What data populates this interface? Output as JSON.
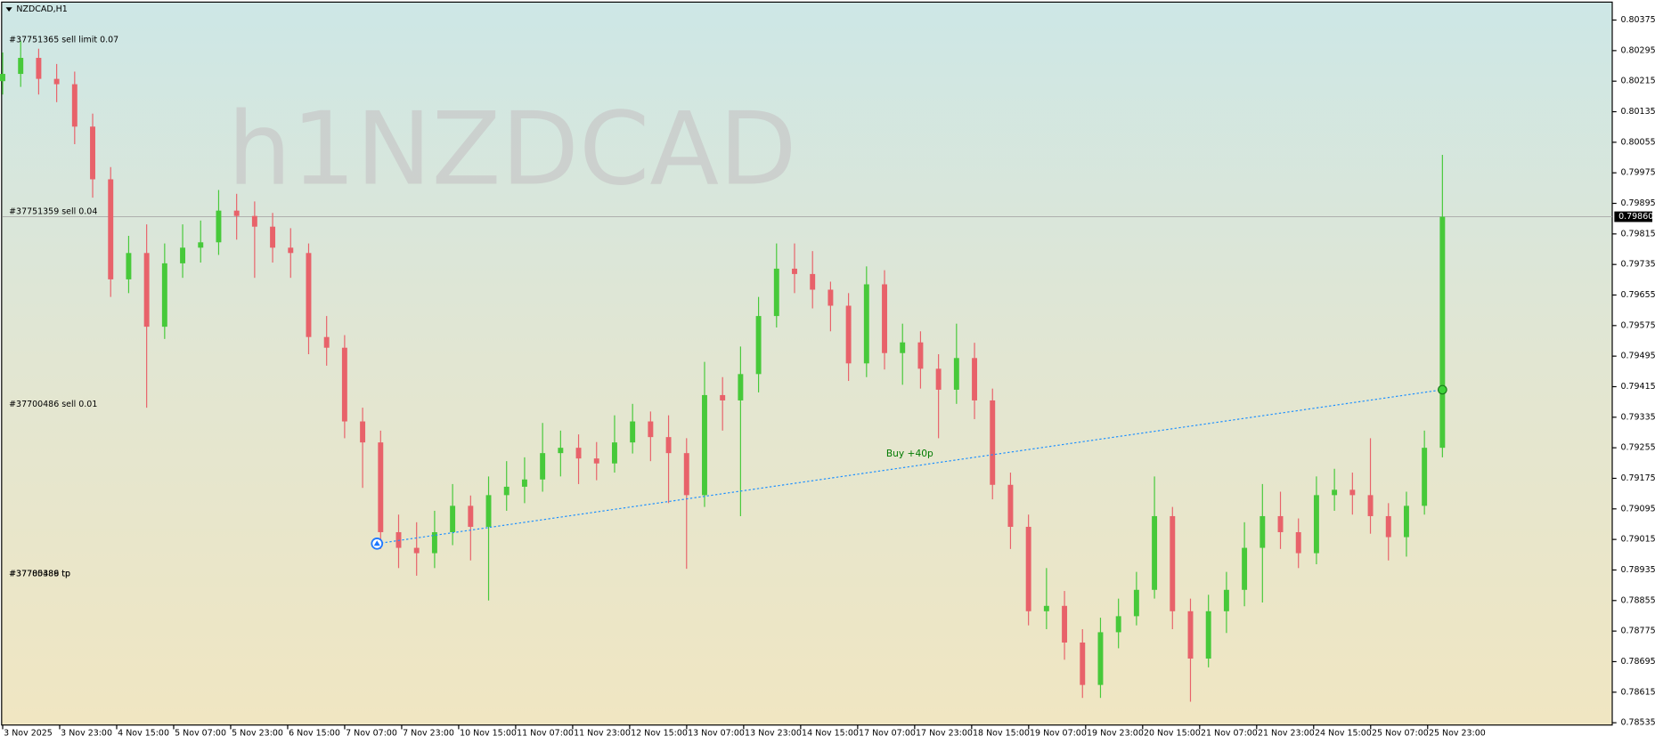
{
  "chart_data": {
    "type": "candlestick",
    "title": "NZDCAD,H1",
    "watermark": "h1NZDCAD",
    "ylim": [
      0.78529,
      0.80422
    ],
    "yticks": [
      0.80375,
      0.80295,
      0.80215,
      0.80135,
      0.80055,
      0.79975,
      0.79895,
      0.79815,
      0.79735,
      0.79655,
      0.79575,
      0.79495,
      0.79415,
      0.79335,
      0.79255,
      0.79175,
      0.79095,
      0.79015,
      0.78935,
      0.78855,
      0.78775,
      0.78695,
      0.78615,
      0.78535
    ],
    "x_labels": [
      "3 Nov 2025",
      "3 Nov 23:00",
      "4 Nov 15:00",
      "5 Nov 07:00",
      "5 Nov 23:00",
      "6 Nov 15:00",
      "7 Nov 07:00",
      "7 Nov 23:00",
      "10 Nov 15:00",
      "11 Nov 07:00",
      "11 Nov 23:00",
      "12 Nov 15:00",
      "13 Nov 07:00",
      "13 Nov 23:00",
      "14 Nov 15:00",
      "17 Nov 07:00",
      "17 Nov 23:00",
      "18 Nov 15:00",
      "19 Nov 07:00",
      "19 Nov 23:00",
      "20 Nov 15:00",
      "21 Nov 07:00",
      "21 Nov 23:00",
      "24 Nov 15:00",
      "25 Nov 07:00",
      "25 Nov 23:00"
    ],
    "up_color": "#47c93a",
    "down_color": "#e8626a",
    "open": [
      0.80215,
      0.80234,
      0.80276,
      0.80221,
      0.80207,
      0.80096,
      0.79958,
      0.79696,
      0.79765,
      0.79572,
      0.79738,
      0.79779,
      0.79793,
      0.79876,
      0.79862,
      0.79834,
      0.79779,
      0.79765,
      0.79545,
      0.79517,
      0.79324,
      0.79269,
      0.79034,
      0.78993,
      0.78979,
      0.79034,
      0.79103,
      0.79048,
      0.79131,
      0.79153,
      0.79172,
      0.79241,
      0.79255,
      0.79227,
      0.79214,
      0.79269,
      0.79324,
      0.79283,
      0.79241,
      0.79131,
      0.79393,
      0.79379,
      0.79448,
      0.796,
      0.79724,
      0.7971,
      0.79669,
      0.79627,
      0.79476,
      0.79683,
      0.79503,
      0.79531,
      0.79462,
      0.79407,
      0.7949,
      0.79379,
      0.79158,
      0.79048,
      0.78827,
      0.78841,
      0.78745,
      0.78634,
      0.78772,
      0.78814,
      0.78883,
      0.79076,
      0.78827,
      0.78703,
      0.78827,
      0.78883,
      0.78993,
      0.79076,
      0.79034,
      0.78979,
      0.79131,
      0.79145,
      0.79131,
      0.79076,
      0.79021,
      0.79103,
      0.79255
    ],
    "high": [
      0.8029,
      0.8032,
      0.803,
      0.8026,
      0.8024,
      0.8013,
      0.7999,
      0.7981,
      0.7984,
      0.7979,
      0.7984,
      0.7985,
      0.7993,
      0.7992,
      0.799,
      0.7987,
      0.7983,
      0.7979,
      0.796,
      0.7955,
      0.7936,
      0.793,
      0.7908,
      0.7906,
      0.7909,
      0.7916,
      0.7913,
      0.7918,
      0.7922,
      0.7923,
      0.7932,
      0.793,
      0.7929,
      0.7927,
      0.7934,
      0.7937,
      0.7935,
      0.7934,
      0.7928,
      0.7948,
      0.7944,
      0.7952,
      0.7965,
      0.7979,
      0.7979,
      0.7977,
      0.7969,
      0.7966,
      0.7973,
      0.7972,
      0.7958,
      0.7956,
      0.795,
      0.7958,
      0.7953,
      0.7941,
      0.7919,
      0.7908,
      0.7894,
      0.7888,
      0.7878,
      0.7881,
      0.7886,
      0.7893,
      0.7918,
      0.791,
      0.7886,
      0.7887,
      0.7893,
      0.7906,
      0.7916,
      0.7914,
      0.7907,
      0.7918,
      0.792,
      0.7919,
      0.7928,
      0.7911,
      0.7914,
      0.793,
      0.80022
    ],
    "low": [
      0.8018,
      0.802,
      0.8018,
      0.8016,
      0.8005,
      0.7991,
      0.7965,
      0.7966,
      0.7936,
      0.7954,
      0.797,
      0.7974,
      0.7976,
      0.798,
      0.797,
      0.7974,
      0.797,
      0.795,
      0.7947,
      0.7928,
      0.7915,
      0.7899,
      0.7894,
      0.7892,
      0.7894,
      0.79,
      0.7896,
      0.78855,
      0.7909,
      0.7911,
      0.7914,
      0.7918,
      0.7916,
      0.7917,
      0.7919,
      0.7924,
      0.7922,
      0.7911,
      0.78938,
      0.791,
      0.793,
      0.79076,
      0.794,
      0.7957,
      0.7966,
      0.7962,
      0.7956,
      0.7943,
      0.7944,
      0.7946,
      0.7942,
      0.7941,
      0.7928,
      0.7937,
      0.7933,
      0.7912,
      0.7899,
      0.7879,
      0.7878,
      0.787,
      0.786,
      0.786,
      0.7873,
      0.7879,
      0.7886,
      0.7878,
      0.7859,
      0.7868,
      0.7877,
      0.7884,
      0.7885,
      0.7899,
      0.7894,
      0.7895,
      0.7909,
      0.7908,
      0.7903,
      0.7896,
      0.7897,
      0.7908,
      0.7923
    ],
    "close": [
      0.80234,
      0.80276,
      0.80221,
      0.80207,
      0.80096,
      0.79958,
      0.79696,
      0.79765,
      0.79572,
      0.79738,
      0.79779,
      0.79793,
      0.79876,
      0.79862,
      0.79834,
      0.79779,
      0.79765,
      0.79545,
      0.79517,
      0.79324,
      0.79269,
      0.79034,
      0.78993,
      0.78979,
      0.79034,
      0.79103,
      0.79048,
      0.79131,
      0.79153,
      0.79172,
      0.79241,
      0.79255,
      0.79227,
      0.79214,
      0.79269,
      0.79324,
      0.79283,
      0.79241,
      0.79131,
      0.79393,
      0.79379,
      0.79448,
      0.796,
      0.79724,
      0.7971,
      0.79669,
      0.79627,
      0.79476,
      0.79683,
      0.79503,
      0.79531,
      0.79462,
      0.79407,
      0.7949,
      0.79379,
      0.79158,
      0.79048,
      0.78827,
      0.78841,
      0.78745,
      0.78634,
      0.78772,
      0.78814,
      0.78883,
      0.79076,
      0.78827,
      0.78703,
      0.78827,
      0.78883,
      0.78993,
      0.79076,
      0.79034,
      0.78979,
      0.79131,
      0.79145,
      0.79131,
      0.79076,
      0.79021,
      0.79103,
      0.79255,
      0.7986
    ],
    "bid": {
      "value": 0.7986,
      "label": "0.79860"
    },
    "orders": [
      {
        "label": "#37751365 sell limit 0.07",
        "price": 0.80323
      },
      {
        "label": "#37751359 sell 0.04",
        "price": 0.79873
      },
      {
        "label": "#37700486 sell 0.01",
        "price": 0.79368
      },
      {
        "label": "#37785389 tp",
        "price": 0.78924
      },
      {
        "label": "#37700486 tp",
        "price": 0.78924
      }
    ],
    "trade": {
      "label": "Buy +40p",
      "entry": 0.79004,
      "exit": 0.79407,
      "entry_bar": 20.8,
      "exit_bar": 80
    }
  }
}
